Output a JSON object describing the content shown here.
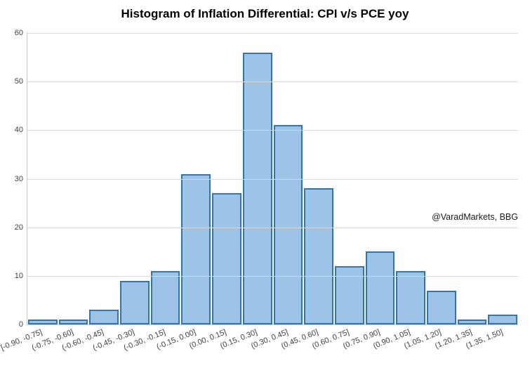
{
  "title": "Histogram of Inflation Differential: CPI v/s PCE yoy",
  "annotation": "@VaradMarkets, BBG",
  "chart_data": {
    "type": "bar",
    "subtype": "histogram",
    "title": "Histogram of Inflation Differential: CPI v/s PCE yoy",
    "categories": [
      "[-0.90, -0.75]",
      "(-0.75, -0.60]",
      "(-0.60, -0.45]",
      "(-0.45, -0.30]",
      "(-0.30, -0.15]",
      "(-0.15, 0.00]",
      "(0.00, 0.15]",
      "(0.15, 0.30]",
      "(0.30, 0.45]",
      "(0.45, 0.60]",
      "(0.60, 0.75]",
      "(0.75, 0.90]",
      "(0.90, 1.05]",
      "(1.05, 1.20]",
      "(1.20, 1.35]",
      "(1.35, 1.50]"
    ],
    "values": [
      1,
      1,
      3,
      9,
      11,
      31,
      27,
      56,
      41,
      28,
      12,
      15,
      11,
      7,
      1,
      2
    ],
    "xlabel": "",
    "ylabel": "",
    "ylim": [
      0,
      60
    ],
    "yticks": [
      0,
      10,
      20,
      30,
      40,
      50,
      60
    ],
    "grid": true,
    "legend_position": "none",
    "annotations": [
      "@VaradMarkets, BBG"
    ],
    "colors": {
      "bar_fill": "#9DC3E6",
      "bar_border": "#2E75B6",
      "gridline": "#D9D9D9",
      "axis_line": "#C9C9C9",
      "tick_text": "#404040",
      "title_text": "#000000"
    }
  }
}
